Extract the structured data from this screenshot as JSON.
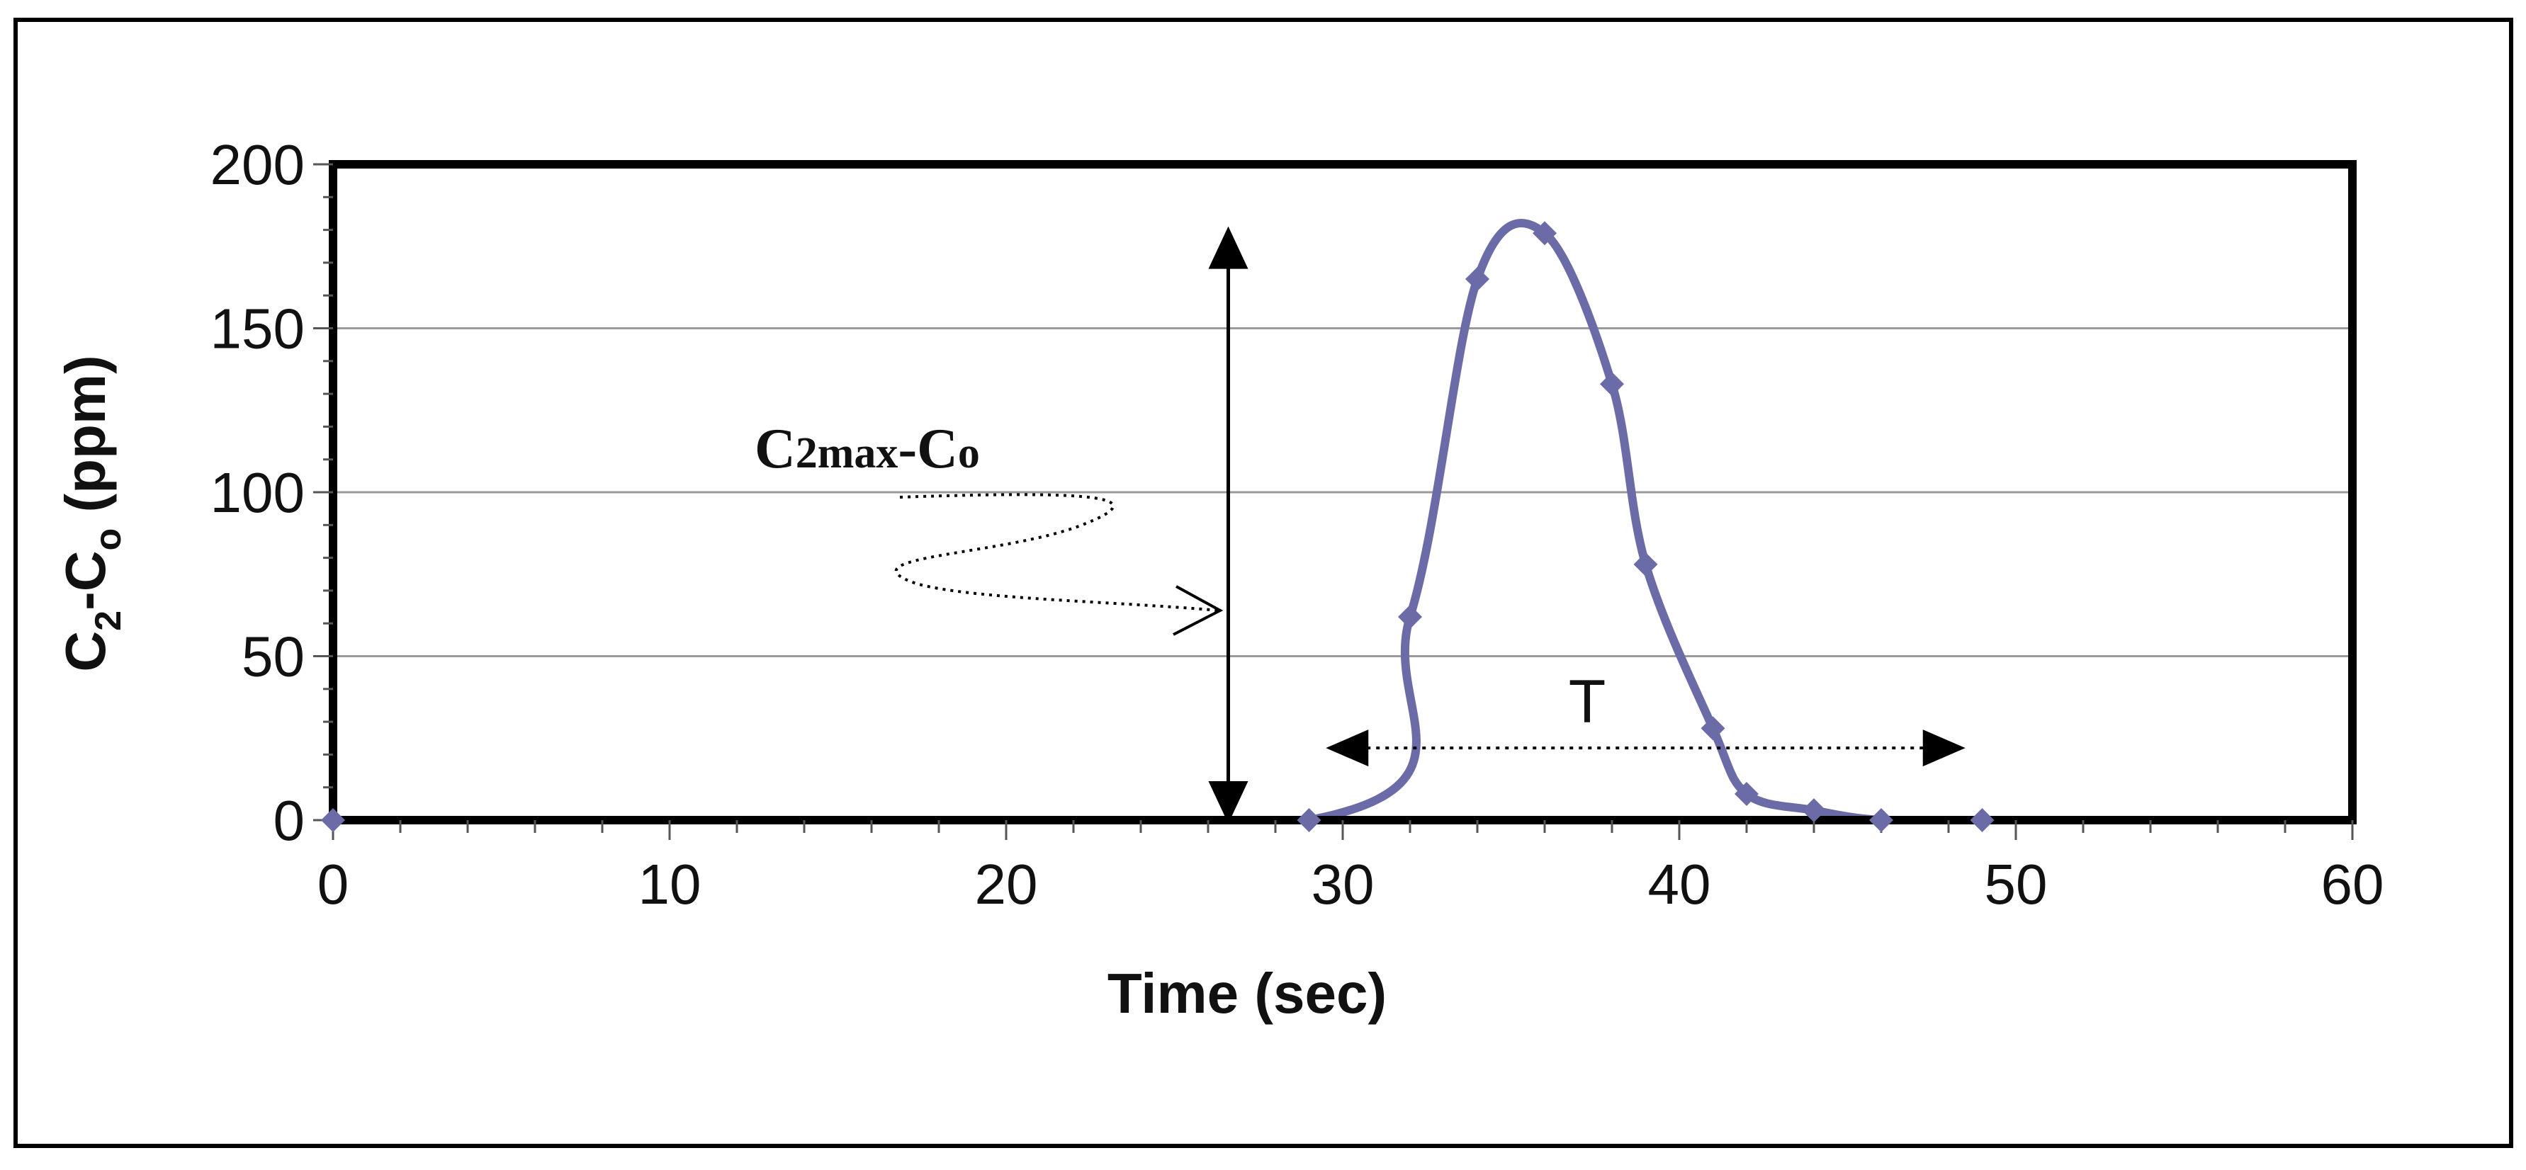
{
  "chart_data": {
    "type": "line",
    "title": "",
    "xlabel": "Time (sec)",
    "ylabel_parts": {
      "c1": "C",
      "s1": "2",
      "mid": "-C",
      "s2": "o",
      "unit": " (ppm)"
    },
    "xlim": [
      0,
      60
    ],
    "ylim": [
      0,
      200
    ],
    "x_major_ticks": [
      0,
      10,
      20,
      30,
      40,
      50,
      60
    ],
    "x_tick_labels": [
      "0",
      "10",
      "20",
      "30",
      "40",
      "50",
      "60"
    ],
    "x_minor_step": 2,
    "y_major_ticks": [
      0,
      50,
      100,
      150,
      200
    ],
    "y_tick_labels": [
      "0",
      "50",
      "100",
      "150",
      "200"
    ],
    "y_minor_step": 10,
    "grid": "horizontal",
    "series": [
      {
        "name": "C2-Co",
        "color": "#6b6ba8",
        "marker": "diamond",
        "smooth": true,
        "x": [
          0,
          29,
          32,
          34,
          36,
          38,
          39,
          41,
          42,
          44,
          46,
          49
        ],
        "y": [
          0,
          0,
          62,
          165,
          179,
          133,
          78,
          28,
          8,
          3,
          0,
          0
        ]
      }
    ],
    "annotations": {
      "cmax_label": {
        "c": "C",
        "sub": "2max",
        "rest": "-C",
        "sub2": "o"
      },
      "cmax_arrow": {
        "x": 26.6,
        "y_from": 0,
        "y_to": 180
      },
      "t_label": "T",
      "t_arrow": {
        "y": 22,
        "x_from": 29.5,
        "x_to": 48.5
      }
    }
  }
}
